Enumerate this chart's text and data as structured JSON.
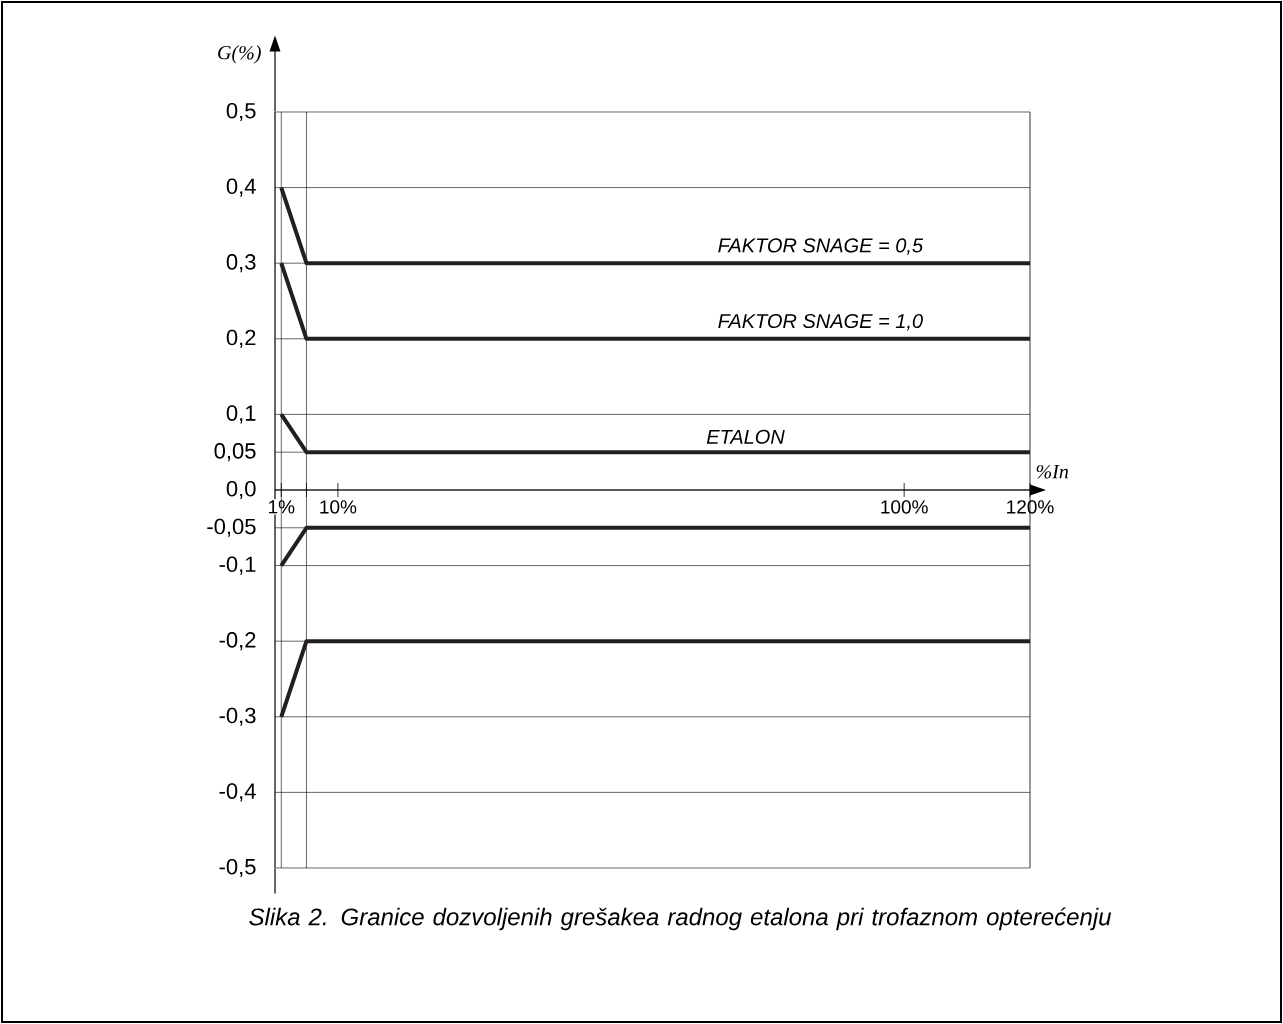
{
  "chart_data": {
    "type": "line",
    "xlabel": "%In",
    "ylabel": "G(%)",
    "x": [
      1,
      5,
      120
    ],
    "series": [
      {
        "name": "FAKTOR SNAGE = 0,5",
        "color": "#231f20",
        "values": [
          0.4,
          0.3,
          0.3
        ]
      },
      {
        "name": "FAKTOR SNAGE = 1,0",
        "color": "#231f20",
        "values": [
          0.3,
          0.2,
          0.2
        ]
      },
      {
        "name": "ETALON",
        "color": "#231f20",
        "values": [
          0.1,
          0.05,
          0.05
        ]
      },
      {
        "color": "#231f20",
        "values": [
          -0.1,
          -0.05,
          -0.05
        ]
      },
      {
        "color": "#231f20",
        "values": [
          -0.3,
          -0.2,
          -0.2
        ]
      }
    ],
    "xlim": [
      0,
      120
    ],
    "ylim": [
      -0.5,
      0.5
    ],
    "xticks": [
      {
        "value": 1,
        "label": "1%"
      },
      {
        "value": 5,
        "label": null
      },
      {
        "value": 10,
        "label": "10%"
      },
      {
        "value": 100,
        "label": "100%"
      },
      {
        "value": 120,
        "label": "120%"
      }
    ],
    "yticks": [
      {
        "value": -0.5,
        "label": "-0,5"
      },
      {
        "value": -0.4,
        "label": "-0,4"
      },
      {
        "value": -0.3,
        "label": "-0,3"
      },
      {
        "value": -0.2,
        "label": "-0,2"
      },
      {
        "value": -0.1,
        "label": "-0,1"
      },
      {
        "value": -0.05,
        "label": "-0,05"
      },
      {
        "value": 0,
        "label": "0,0"
      },
      {
        "value": 0.05,
        "label": "0,05"
      },
      {
        "value": 0.1,
        "label": "0,1"
      },
      {
        "value": 0.2,
        "label": "0,2"
      },
      {
        "value": 0.3,
        "label": "0,3"
      },
      {
        "value": 0.4,
        "label": "0,4"
      },
      {
        "value": 0.5,
        "label": "0,5"
      }
    ],
    "grid": "y",
    "ref_lines": [
      {
        "axis": "x",
        "value": 1,
        "label": null
      },
      {
        "axis": "x",
        "value": 5,
        "label": null
      }
    ],
    "annotations": [
      "Slika 2.   Granice dozvoljenih grešakea radnog etalona pri trofaznom opterećenju"
    ]
  }
}
